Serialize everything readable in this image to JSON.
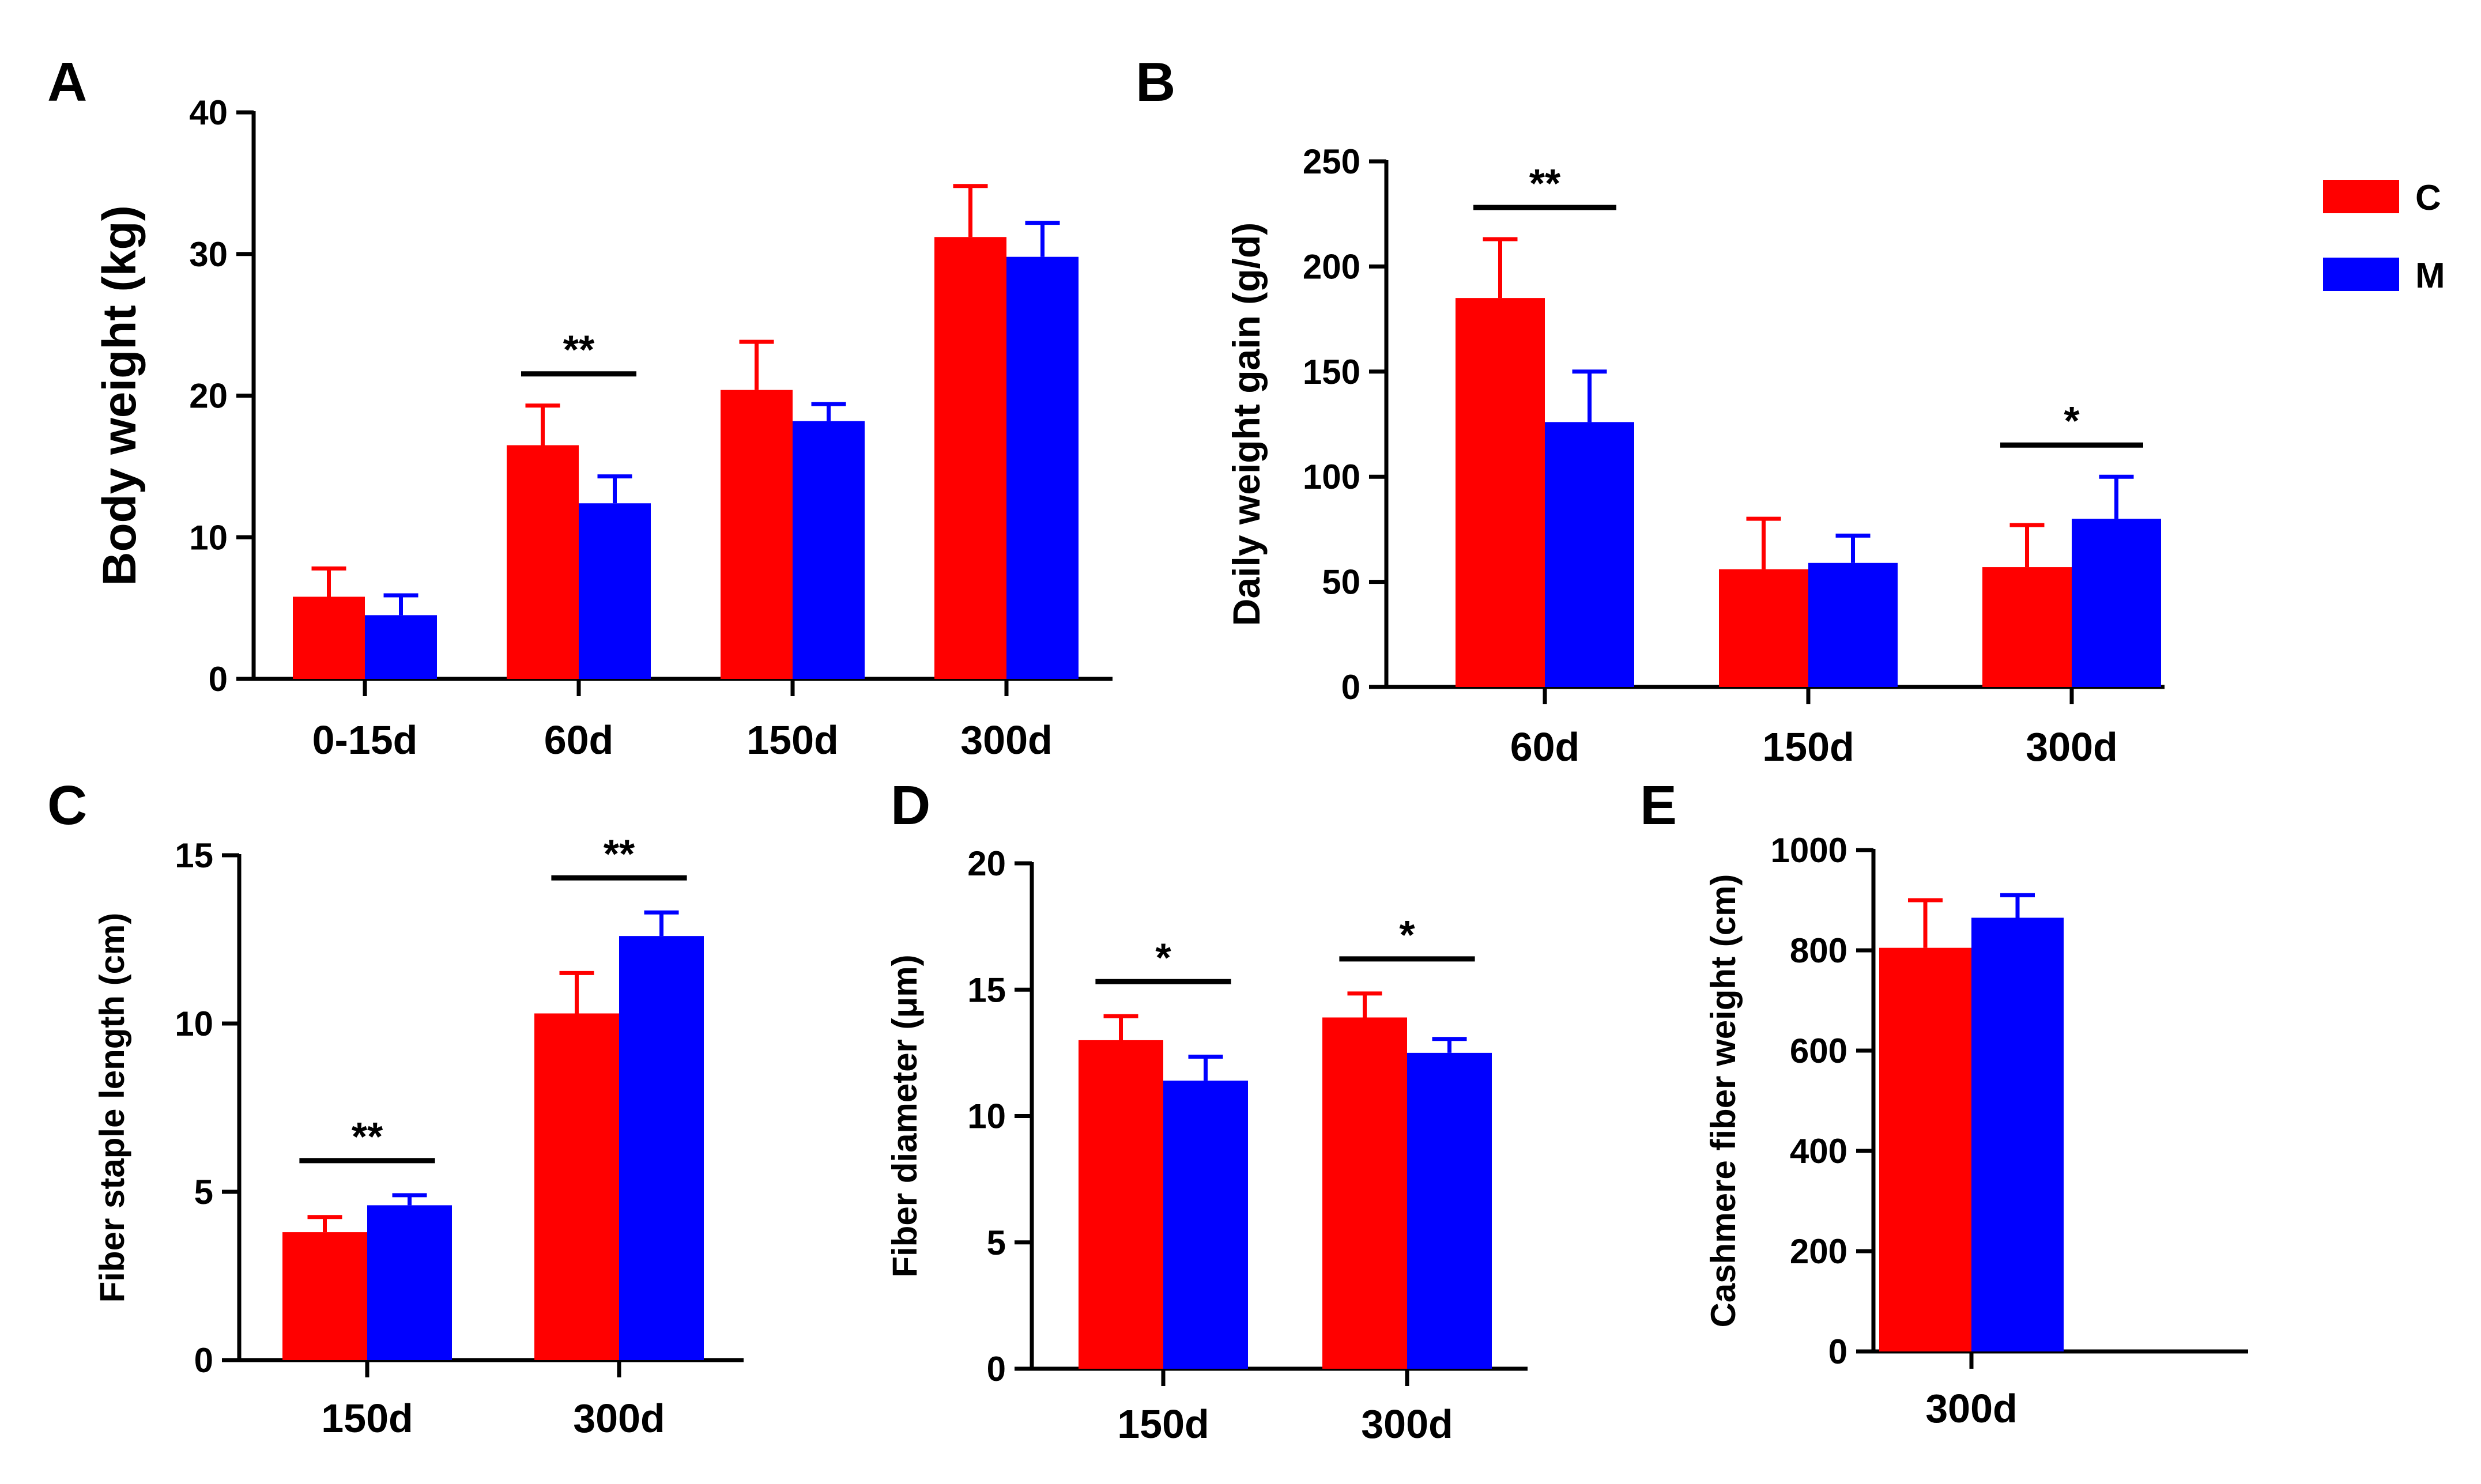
{
  "colors": {
    "C": "#ff0000",
    "M": "#0000ff",
    "axis": "#000000"
  },
  "legend": [
    {
      "key": "C",
      "label": "C"
    },
    {
      "key": "M",
      "label": "M"
    }
  ],
  "chart_data": [
    {
      "id": "A",
      "panel_label": "A",
      "type": "bar",
      "ylabel": "Body weight (kg)",
      "ylim": [
        0,
        40
      ],
      "yticks": [
        0,
        10,
        20,
        30,
        40
      ],
      "categories": [
        "0-15d",
        "60d",
        "150d",
        "300d"
      ],
      "series": [
        {
          "name": "C",
          "values": [
            5.8,
            16.5,
            20.4,
            31.2
          ],
          "errors": [
            2.0,
            2.8,
            3.4,
            3.6
          ]
        },
        {
          "name": "M",
          "values": [
            4.5,
            12.4,
            18.2,
            29.8
          ],
          "errors": [
            1.4,
            1.9,
            1.2,
            2.4
          ]
        }
      ],
      "significance": [
        {
          "category": "60d",
          "label": "**"
        }
      ]
    },
    {
      "id": "B",
      "panel_label": "B",
      "type": "bar",
      "ylabel": "Daily weight gain (g/d)",
      "ylim": [
        0,
        250
      ],
      "yticks": [
        0,
        50,
        100,
        150,
        200,
        250
      ],
      "categories": [
        "60d",
        "150d",
        "300d"
      ],
      "series": [
        {
          "name": "C",
          "values": [
            185,
            56,
            57
          ],
          "errors": [
            28,
            24,
            20
          ]
        },
        {
          "name": "M",
          "values": [
            126,
            59,
            80
          ],
          "errors": [
            24,
            13,
            20
          ]
        }
      ],
      "significance": [
        {
          "category": "60d",
          "label": "**"
        },
        {
          "category": "300d",
          "label": "*"
        }
      ]
    },
    {
      "id": "C",
      "panel_label": "C",
      "type": "bar",
      "ylabel": "Fiber staple length (cm)",
      "ylim": [
        0,
        15
      ],
      "yticks": [
        0,
        5,
        10,
        15
      ],
      "categories": [
        "150d",
        "300d"
      ],
      "series": [
        {
          "name": "C",
          "values": [
            3.8,
            10.3
          ],
          "errors": [
            0.45,
            1.2
          ]
        },
        {
          "name": "M",
          "values": [
            4.6,
            12.6
          ],
          "errors": [
            0.3,
            0.7
          ]
        }
      ],
      "significance": [
        {
          "category": "150d",
          "label": "**"
        },
        {
          "category": "300d",
          "label": "**"
        }
      ]
    },
    {
      "id": "D",
      "panel_label": "D",
      "type": "bar",
      "ylabel": "Fiber diameter (μm)",
      "ylim": [
        0,
        20
      ],
      "yticks": [
        0,
        5,
        10,
        15,
        20
      ],
      "categories": [
        "150d",
        "300d"
      ],
      "series": [
        {
          "name": "C",
          "values": [
            13.0,
            13.9
          ],
          "errors": [
            0.95,
            0.95
          ]
        },
        {
          "name": "M",
          "values": [
            11.4,
            12.5
          ],
          "errors": [
            0.95,
            0.55
          ]
        }
      ],
      "significance": [
        {
          "category": "150d",
          "label": "*"
        },
        {
          "category": "300d",
          "label": "*"
        }
      ]
    },
    {
      "id": "E",
      "panel_label": "E",
      "type": "bar",
      "ylabel": "Cashmere fiber weight (cm)",
      "ylim": [
        0,
        1000
      ],
      "yticks": [
        0,
        200,
        400,
        600,
        800,
        1000
      ],
      "categories": [
        "300d"
      ],
      "series": [
        {
          "name": "C",
          "values": [
            805
          ],
          "errors": [
            95
          ]
        },
        {
          "name": "M",
          "values": [
            865
          ],
          "errors": [
            45
          ]
        }
      ],
      "significance": []
    }
  ]
}
